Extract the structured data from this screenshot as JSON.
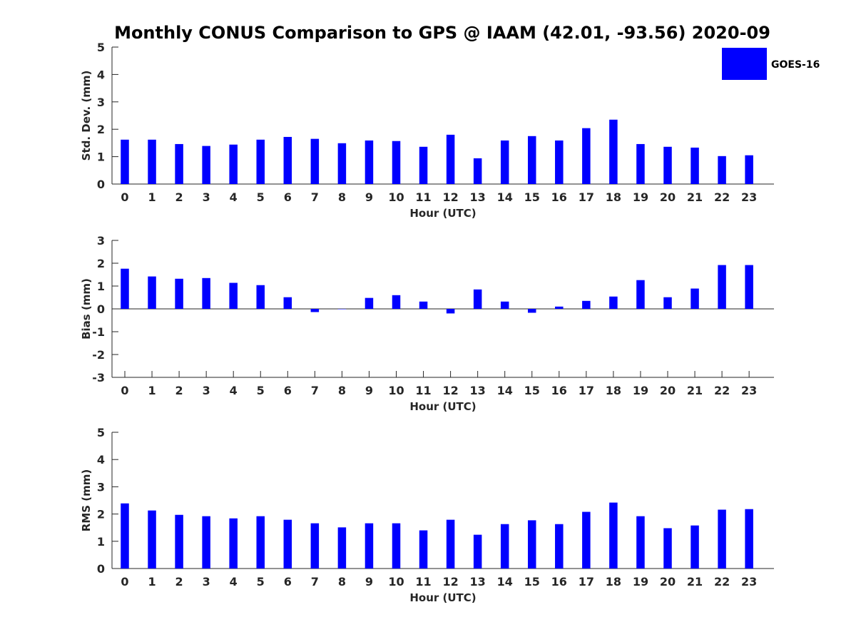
{
  "chart_data": {
    "type": "bar",
    "title": "Monthly CONUS Comparison to GPS @ IAAM (42.01, -93.56) 2020-09",
    "legend": {
      "entries": [
        "GOES-16"
      ],
      "placement": "top-right",
      "color": "#0000ff"
    },
    "categories": [
      "0",
      "1",
      "2",
      "3",
      "4",
      "5",
      "6",
      "7",
      "8",
      "9",
      "10",
      "11",
      "12",
      "13",
      "14",
      "15",
      "16",
      "17",
      "18",
      "19",
      "20",
      "21",
      "22",
      "23"
    ],
    "panels": [
      {
        "id": "stddev",
        "ylabel": "Std. Dev. (mm)",
        "xlabel": "Hour (UTC)",
        "ylim": [
          0,
          5
        ],
        "yticks": [
          0,
          1,
          2,
          3,
          4,
          5
        ],
        "series": [
          {
            "name": "GOES-16",
            "color": "#0000ff",
            "values": [
              1.62,
              1.62,
              1.46,
              1.39,
              1.44,
              1.62,
              1.72,
              1.65,
              1.49,
              1.59,
              1.57,
              1.36,
              1.8,
              0.94,
              1.59,
              1.75,
              1.59,
              2.04,
              2.35,
              1.46,
              1.36,
              1.33,
              1.02,
              1.05
            ]
          }
        ]
      },
      {
        "id": "bias",
        "ylabel": "Bias (mm)",
        "xlabel": "Hour (UTC)",
        "ylim": [
          -3,
          3
        ],
        "yticks": [
          -3,
          -2,
          -1,
          0,
          1,
          2,
          3
        ],
        "series": [
          {
            "name": "GOES-16",
            "color": "#0000ff",
            "values": [
              1.76,
              1.42,
              1.32,
              1.35,
              1.14,
              1.04,
              0.51,
              -0.14,
              -0.01,
              0.48,
              0.6,
              0.32,
              -0.2,
              0.85,
              0.32,
              -0.17,
              0.1,
              0.35,
              0.54,
              1.26,
              0.51,
              0.89,
              1.92,
              1.92
            ]
          }
        ]
      },
      {
        "id": "rms",
        "ylabel": "RMS (mm)",
        "xlabel": "Hour (UTC)",
        "ylim": [
          0,
          5
        ],
        "yticks": [
          0,
          1,
          2,
          3,
          4,
          5
        ],
        "series": [
          {
            "name": "GOES-16",
            "color": "#0000ff",
            "values": [
              2.39,
              2.13,
              1.97,
              1.92,
              1.84,
              1.92,
              1.79,
              1.66,
              1.51,
              1.66,
              1.66,
              1.4,
              1.79,
              1.24,
              1.63,
              1.77,
              1.63,
              2.08,
              2.42,
              1.92,
              1.48,
              1.58,
              2.16,
              2.18
            ]
          }
        ]
      }
    ]
  }
}
